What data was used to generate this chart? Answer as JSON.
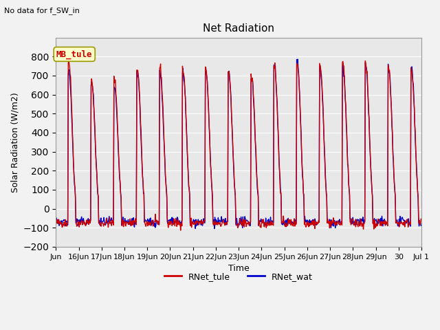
{
  "title": "Net Radiation",
  "suptitle": "No data for f_SW_in",
  "ylabel": "Solar Radiation (W/m2)",
  "xlabel": "Time",
  "ylim": [
    -200,
    900
  ],
  "yticks": [
    -200,
    -100,
    0,
    100,
    200,
    300,
    400,
    500,
    600,
    700,
    800
  ],
  "color_tule": "#cc0000",
  "color_wat": "#0000cc",
  "annotation_text": "MB_tule",
  "annotation_color": "#cc0000",
  "annotation_bg": "#ffffcc",
  "legend_entries": [
    "RNet_tule",
    "RNet_wat"
  ],
  "xtick_labels": [
    "Jun",
    "16Jun",
    "17Jun",
    "18Jun",
    "19Jun",
    "20Jun",
    "21Jun",
    "22Jun",
    "23Jun",
    "24Jun",
    "25Jun",
    "26Jun",
    "27Jun",
    "28Jun",
    "29Jun",
    "30",
    "Jul 1"
  ],
  "n_days": 16,
  "peak_tule": [
    780,
    675,
    680,
    740,
    745,
    730,
    730,
    720,
    700,
    755,
    770,
    760,
    760,
    755,
    745,
    740
  ],
  "peak_wat": [
    720,
    665,
    630,
    720,
    710,
    720,
    720,
    715,
    695,
    755,
    770,
    750,
    745,
    750,
    740,
    740
  ],
  "night_tule": -75,
  "night_wat": -70,
  "noise_scale": 12,
  "linewidth": 1.0,
  "plot_bg": "#e8e8e8",
  "fig_bg": "#f2f2f2",
  "grid_color": "#ffffff",
  "title_fontsize": 11,
  "label_fontsize": 9,
  "tick_fontsize": 8,
  "legend_fontsize": 9
}
